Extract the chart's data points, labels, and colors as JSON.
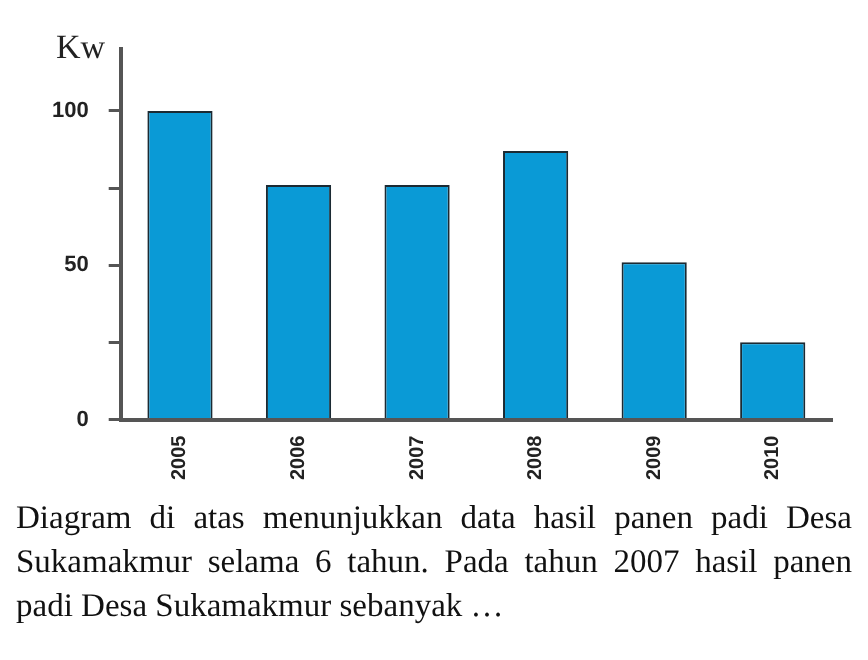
{
  "chart_data": {
    "type": "bar",
    "ylabel": "Kw",
    "categories": [
      "2005",
      "2006",
      "2007",
      "2008",
      "2009",
      "2010"
    ],
    "values": [
      100,
      76,
      76,
      87,
      51,
      25
    ],
    "color": "#0a9ad6",
    "ylim": [
      0,
      120
    ],
    "yticks": [
      0,
      {
        "value": 25,
        "label": null
      },
      50,
      {
        "value": 75,
        "label": null
      },
      100
    ],
    "grid": false,
    "annotations": [
      "Diagram di atas menunjukkan data hasil panen padi Desa Sukamakmur selama 6 tahun. Pada tahun 2007 hasil panen padi Desa Sukamakmur sebanyak …"
    ]
  }
}
